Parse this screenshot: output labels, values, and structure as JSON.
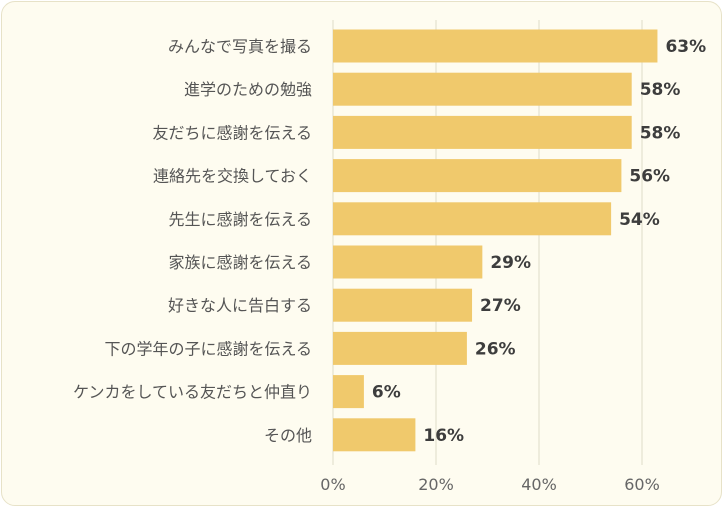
{
  "chart_data": {
    "type": "bar",
    "orientation": "horizontal",
    "categories": [
      "みんなで写真を撮る",
      "進学のための勉強",
      "友だちに感謝を伝える",
      "連絡先を交換しておく",
      "先生に感謝を伝える",
      "家族に感謝を伝える",
      "好きな人に告白する",
      "下の学年の子に感謝を伝える",
      "ケンカをしている友だちと仲直り",
      "その他"
    ],
    "values": [
      63,
      58,
      58,
      56,
      54,
      29,
      27,
      26,
      6,
      16
    ],
    "value_labels": [
      "63%",
      "58%",
      "58%",
      "56%",
      "54%",
      "29%",
      "27%",
      "26%",
      "6%",
      "16%"
    ],
    "xlim": [
      0,
      68
    ],
    "xticks": [
      0,
      20,
      40,
      60
    ],
    "xtick_labels": [
      "0%",
      "20%",
      "40%",
      "60%"
    ],
    "grid": true,
    "bar_color": "#f0c96c",
    "grid_color": "#dedbc8"
  }
}
